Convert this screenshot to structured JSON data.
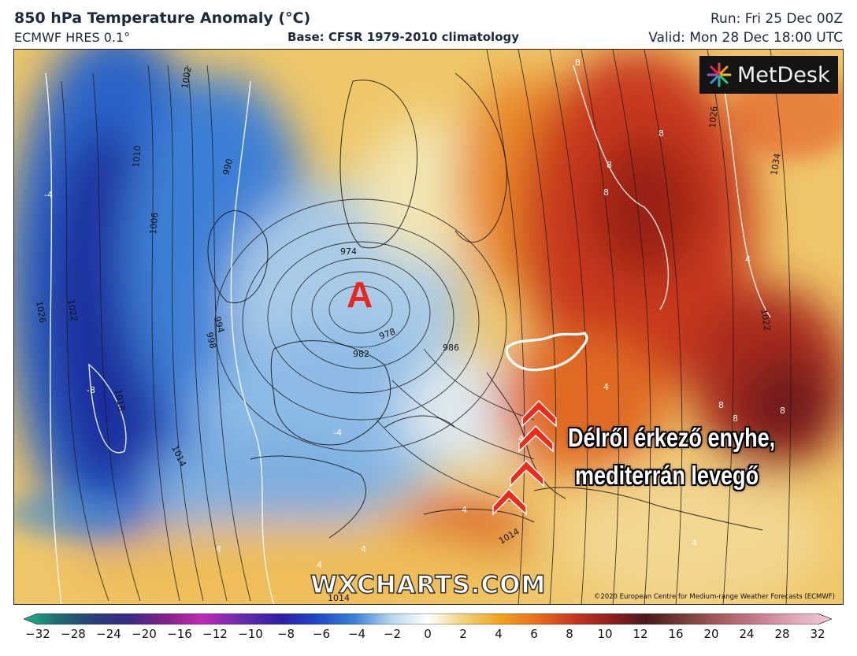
{
  "header": {
    "title": "850 hPa Temperature Anomaly (°C)",
    "model": "ECMWF HRES 0.1°",
    "base": "Base: CFSR 1979-2010 climatology",
    "run": "Run: Fri 25 Dec 00Z",
    "valid": "Valid: Mon 28 Dec 18:00 UTC"
  },
  "map": {
    "low_marker": "A",
    "annotation_line1": "Délről érkező enyhe,",
    "annotation_line2": "mediterrán levegő",
    "watermark": "WXCHARTS.COM",
    "copyright": "©2020 European Centre for Medium-range Weather Forecasts (ECMWF)",
    "logo_text": "MetDesk",
    "isobar_labels": [
      "1002",
      "1010",
      "1006",
      "1026",
      "1022",
      "1018",
      "1014",
      "990",
      "994",
      "998",
      "974",
      "978",
      "982",
      "986",
      "1026",
      "1034",
      "1022",
      "1014",
      "1014"
    ],
    "anomaly_labels": [
      "8",
      "8",
      "8",
      "8",
      "4",
      "4",
      "-4",
      "-4",
      "-8",
      "4",
      "4",
      "8",
      "8",
      "8",
      "4",
      "4",
      "4",
      "4"
    ]
  },
  "colorbar": {
    "ticks": [
      "−32",
      "−28",
      "−24",
      "−20",
      "−16",
      "−12",
      "−10",
      "−8",
      "−6",
      "−4",
      "−2",
      "0",
      "2",
      "4",
      "6",
      "8",
      "10",
      "12",
      "16",
      "20",
      "24",
      "28",
      "32"
    ],
    "colors": [
      "#1fb58c",
      "#1f6f73",
      "#2a3b7a",
      "#3a2a86",
      "#8a1f8e",
      "#c02ab4",
      "#6a2ab0",
      "#2c1fa6",
      "#1f43c8",
      "#3b82d6",
      "#b8d7ee",
      "#ffffff",
      "#f1d27a",
      "#f2a21d",
      "#e8681d",
      "#c8371f",
      "#8a1f1f",
      "#4a1a1a",
      "#7a3f3a",
      "#a8595e",
      "#c97e8e",
      "#e0a9b9",
      "#f4c9d6"
    ]
  }
}
